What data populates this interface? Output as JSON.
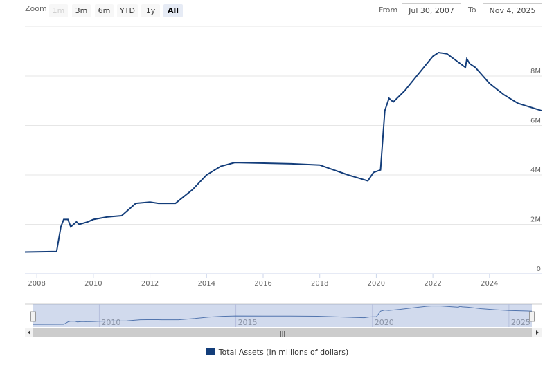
{
  "range_selector": {
    "zoom_label": "Zoom",
    "buttons": [
      {
        "label": "1m",
        "state": "disabled"
      },
      {
        "label": "3m",
        "state": "normal"
      },
      {
        "label": "6m",
        "state": "normal"
      },
      {
        "label": "YTD",
        "state": "normal"
      },
      {
        "label": "1y",
        "state": "normal"
      },
      {
        "label": "All",
        "state": "selected"
      }
    ],
    "from_label": "From",
    "from_value": "Jul 30, 2007",
    "to_label": "To",
    "to_value": "Nov 4, 2025"
  },
  "chart_data": {
    "type": "line",
    "title": "",
    "xlabel": "",
    "ylabel": "",
    "xlim": [
      2007.58,
      2025.84
    ],
    "ylim": [
      0,
      10
    ],
    "y_unit": "M",
    "x_ticks": [
      "2008",
      "2010",
      "2012",
      "2014",
      "2016",
      "2018",
      "2020",
      "2022",
      "2024"
    ],
    "y_ticks": [
      "0",
      "2M",
      "4M",
      "6M",
      "8M"
    ],
    "grid": true,
    "line_color": "#133d7a",
    "navigator_ticks": [
      "2010",
      "2015",
      "2020",
      "2025"
    ],
    "series": [
      {
        "name": "Total Assets (In millions of dollars)",
        "x": [
          2007.58,
          2008.7,
          2008.85,
          2008.95,
          2009.1,
          2009.2,
          2009.3,
          2009.4,
          2009.5,
          2009.8,
          2010.0,
          2010.5,
          2011.0,
          2011.5,
          2012.0,
          2012.3,
          2012.9,
          2013.5,
          2014.0,
          2014.5,
          2015.0,
          2017.0,
          2018.0,
          2019.0,
          2019.7,
          2019.9,
          2020.15,
          2020.3,
          2020.45,
          2020.6,
          2021.0,
          2021.5,
          2022.0,
          2022.2,
          2022.5,
          2023.15,
          2023.2,
          2023.3,
          2023.5,
          2024.0,
          2024.5,
          2025.0,
          2025.84
        ],
        "values": [
          0.88,
          0.9,
          1.9,
          2.2,
          2.2,
          1.9,
          2.0,
          2.1,
          2.0,
          2.1,
          2.2,
          2.3,
          2.35,
          2.85,
          2.9,
          2.85,
          2.85,
          3.4,
          4.0,
          4.35,
          4.5,
          4.45,
          4.4,
          4.0,
          3.76,
          4.1,
          4.2,
          6.6,
          7.1,
          6.95,
          7.4,
          8.1,
          8.8,
          8.95,
          8.9,
          8.35,
          8.7,
          8.5,
          8.35,
          7.7,
          7.25,
          6.9,
          6.6
        ]
      }
    ]
  },
  "legend": {
    "label": "Total Assets (In millions of dollars)",
    "color": "#133d7a"
  }
}
